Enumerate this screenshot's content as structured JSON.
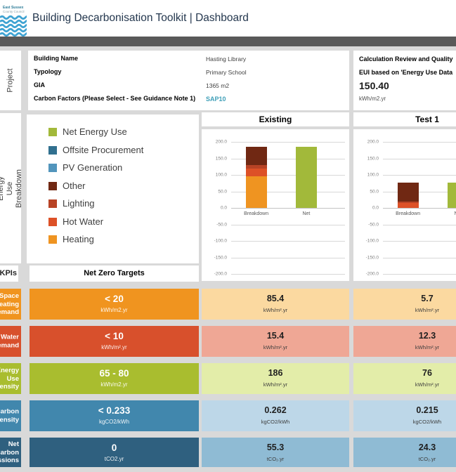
{
  "header": {
    "title": "Building Decarbonisation Toolkit | Dashboard",
    "logo_line1": "East Sussex",
    "logo_line2": "County Council"
  },
  "sidebar": {
    "project_label": "Project",
    "energy_label": "Energy Use\nBreakdown",
    "kpis_label": "KPIs"
  },
  "project_info": {
    "rows": [
      {
        "label": "Building Name",
        "value": "Hasting Library"
      },
      {
        "label": "Typology",
        "value": "Primary School"
      },
      {
        "label": "GIA",
        "value": "1365 m2"
      },
      {
        "label": "Carbon Factors (Please Select - See Guidance Note 1)",
        "value": "SAP10"
      }
    ]
  },
  "quality_panel": {
    "line1": "Calculation Review and Quality",
    "line2": "EUI based on 'Energy Use Data",
    "value": "150.40",
    "unit": "kWh/m2.yr"
  },
  "legend": {
    "items": [
      {
        "label": "Net Energy Use",
        "color": "#A2B93A"
      },
      {
        "label": "Offsite Procurement",
        "color": "#31708F"
      },
      {
        "label": "PV Generation",
        "color": "#5295BC"
      },
      {
        "label": "Other",
        "color": "#702813"
      },
      {
        "label": "Lighting",
        "color": "#B84325"
      },
      {
        "label": "Hot Water",
        "color": "#DD5127"
      },
      {
        "label": "Heating",
        "color": "#EF9421"
      }
    ]
  },
  "chart_data": [
    {
      "type": "bar",
      "title": "Existing",
      "categories": [
        "Breakdown",
        "Net"
      ],
      "ylim": [
        -200,
        200
      ],
      "ytick_step": 50,
      "grid": true,
      "stacked_series": [
        {
          "name": "Heating",
          "color": "#EF9421",
          "values": [
            96,
            0
          ]
        },
        {
          "name": "Hot Water",
          "color": "#DD5127",
          "values": [
            24,
            0
          ]
        },
        {
          "name": "Lighting",
          "color": "#B84325",
          "values": [
            10,
            0
          ]
        },
        {
          "name": "Other",
          "color": "#702813",
          "values": [
            56,
            0
          ]
        },
        {
          "name": "PV Generation",
          "color": "#5295BC",
          "values": [
            0,
            0
          ]
        },
        {
          "name": "Offsite Procurement",
          "color": "#31708F",
          "values": [
            0,
            0
          ]
        },
        {
          "name": "Net Energy Use",
          "color": "#A2B93A",
          "values": [
            0,
            186
          ]
        }
      ],
      "totals": {
        "Breakdown": 186,
        "Net": 186
      }
    },
    {
      "type": "bar",
      "title": "Test 1",
      "categories": [
        "Breakdown",
        "Net"
      ],
      "ylim": [
        -200,
        200
      ],
      "ytick_step": 50,
      "grid": true,
      "stacked_series": [
        {
          "name": "Heating",
          "color": "#EF9421",
          "values": [
            0,
            0
          ]
        },
        {
          "name": "Hot Water",
          "color": "#DD5127",
          "values": [
            14,
            0
          ]
        },
        {
          "name": "Lighting",
          "color": "#B84325",
          "values": [
            5,
            0
          ]
        },
        {
          "name": "Other",
          "color": "#702813",
          "values": [
            57,
            0
          ]
        },
        {
          "name": "PV Generation",
          "color": "#5295BC",
          "values": [
            0,
            0
          ]
        },
        {
          "name": "Offsite Procurement",
          "color": "#31708F",
          "values": [
            0,
            0
          ]
        },
        {
          "name": "Net Energy Use",
          "color": "#A2B93A",
          "values": [
            0,
            76
          ]
        }
      ],
      "totals": {
        "Breakdown": 76,
        "Net": 76
      }
    }
  ],
  "kpi_table": {
    "header": "Net Zero Targets",
    "rows": [
      {
        "label_lines": "Space\nHeating\nDemand",
        "accent": "#F0941F",
        "light": "#FBD9A0",
        "target": "< 20",
        "target_unit": "kWh/m2.yr",
        "existing": "85.4",
        "existing_unit": "kWh/m².yr",
        "test1": "5.7",
        "test1_unit": "kWh/m².yr"
      },
      {
        "label_lines": "Hot Water\nDemand",
        "accent": "#D8502C",
        "light": "#EFA795",
        "target": "< 10",
        "target_unit": "kWh/m².yr",
        "existing": "15.4",
        "existing_unit": "kWh/m².yr",
        "test1": "12.3",
        "test1_unit": "kWh/m².yr"
      },
      {
        "label_lines": "Energy\nUse\nIntensity",
        "accent": "#A9BD2F",
        "light": "#E3EDA9",
        "target": "65 - 80",
        "target_unit": "kWh/m2.yr",
        "existing": "186",
        "existing_unit": "kWh/m².yr",
        "test1": "76",
        "test1_unit": "kWh/m².yr"
      },
      {
        "label_lines": "Carbon\nIntensity",
        "accent": "#4187AD",
        "light": "#BDD7E8",
        "target": "< 0.233",
        "target_unit": "kgCO2/kWh",
        "existing": "0.262",
        "existing_unit": "kgCO2/kWh",
        "test1": "0.215",
        "test1_unit": "kgCO2/kWh"
      },
      {
        "label_lines": "Net\nCarbon\nEmissions",
        "accent": "#2F607F",
        "light": "#8FBBD4",
        "target": "0",
        "target_unit": "tCO2.yr",
        "existing": "55.3",
        "existing_unit": "tCO₂.yr",
        "test1": "24.3",
        "test1_unit": "tCO₂.yr"
      }
    ]
  },
  "colors": {
    "page_bg": "#D9D9D9",
    "dark_bar": "#595959",
    "title_text": "#24374E",
    "select_value": "#3F9FB8",
    "gridline": "#D8D8D8"
  }
}
